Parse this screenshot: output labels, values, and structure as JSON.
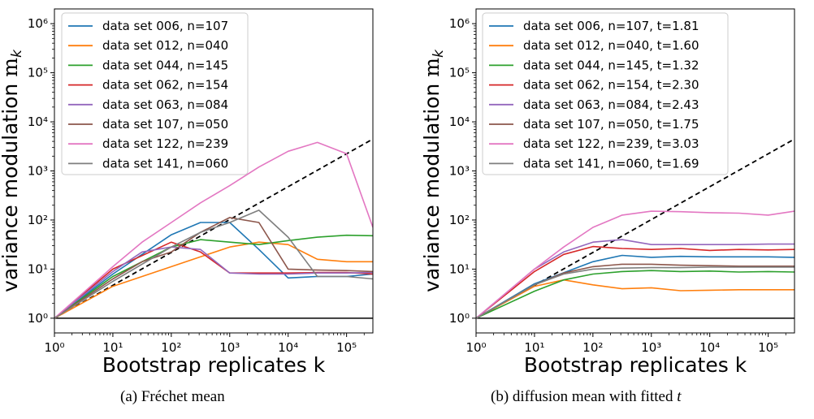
{
  "chart_data": [
    {
      "type": "line",
      "panel_label": "(a)",
      "caption": "Fréchet mean",
      "xlabel": "Bootstrap replicates k",
      "ylabel": "variance modulation ",
      "ylabel_symbol": "m",
      "ylabel_sub": "k",
      "xscale": "log",
      "yscale": "log",
      "xlim_log10": [
        0,
        5.45
      ],
      "ylim_log10": [
        -0.3,
        6.3
      ],
      "x_ticks_log10": [
        0,
        1,
        2,
        3,
        4,
        5
      ],
      "y_ticks_log10": [
        0,
        1,
        2,
        3,
        4,
        5,
        6
      ],
      "legend_position": "top-left",
      "series": [
        {
          "name": "data set 006, n=107",
          "color": "#1f77b4",
          "x_log10": [
            0,
            1,
            2,
            2.5,
            3,
            3.5,
            4,
            4.5,
            5,
            5.45
          ],
          "y_log10": [
            0,
            0.9,
            1.7,
            1.95,
            1.95,
            1.4,
            0.82,
            0.85,
            0.85,
            0.9
          ]
        },
        {
          "name": "data set 012, n=040",
          "color": "#ff7f0e",
          "x_log10": [
            0,
            1,
            2,
            2.5,
            3,
            3.5,
            4,
            4.5,
            5,
            5.45
          ],
          "y_log10": [
            0,
            0.65,
            1.05,
            1.25,
            1.45,
            1.55,
            1.5,
            1.2,
            1.15,
            1.15
          ]
        },
        {
          "name": "data set 044, n=145",
          "color": "#2ca02c",
          "x_log10": [
            0,
            1,
            2,
            2.5,
            3,
            3.5,
            4,
            4.5,
            5,
            5.45
          ],
          "y_log10": [
            0,
            0.85,
            1.45,
            1.6,
            1.55,
            1.5,
            1.58,
            1.65,
            1.69,
            1.68
          ]
        },
        {
          "name": "data set 062, n=154",
          "color": "#d62728",
          "x_log10": [
            0,
            1,
            2,
            2.5,
            3,
            3.5,
            4,
            4.5,
            5,
            5.45
          ],
          "y_log10": [
            0,
            1.0,
            1.55,
            1.35,
            0.92,
            0.92,
            0.92,
            0.93,
            0.93,
            0.9
          ]
        },
        {
          "name": "data set 063, n=084",
          "color": "#9467bd",
          "x_log10": [
            0,
            1,
            1.5,
            2,
            2.5,
            3,
            3.5,
            4,
            4.5,
            5,
            5.45
          ],
          "y_log10": [
            0,
            0.95,
            1.35,
            1.45,
            1.4,
            0.92,
            0.9,
            0.9,
            0.92,
            0.92,
            0.93
          ]
        },
        {
          "name": "data set 107, n=050",
          "color": "#8c564b",
          "x_log10": [
            0,
            1,
            1.5,
            2,
            2.5,
            3,
            3.5,
            4,
            4.5,
            5,
            5.45
          ],
          "y_log10": [
            0,
            0.8,
            1.15,
            1.35,
            1.75,
            2.05,
            1.95,
            1.0,
            0.98,
            0.97,
            0.95
          ]
        },
        {
          "name": "data set 122, n=239",
          "color": "#e377c2",
          "x_log10": [
            0,
            1,
            1.5,
            2,
            2.5,
            3,
            3.5,
            4,
            4.5,
            5,
            5.45
          ],
          "y_log10": [
            0,
            1.05,
            1.55,
            1.95,
            2.35,
            2.7,
            3.08,
            3.4,
            3.58,
            3.35,
            1.85
          ]
        },
        {
          "name": "data set 141, n=060",
          "color": "#7f7f7f",
          "x_log10": [
            0,
            1,
            2,
            2.5,
            3,
            3.5,
            4,
            4.5,
            5,
            5.45
          ],
          "y_log10": [
            0,
            0.75,
            1.45,
            1.75,
            1.95,
            2.2,
            1.65,
            0.85,
            0.85,
            0.8
          ]
        }
      ],
      "reference_lines": [
        {
          "name": "identity",
          "style": "dashed",
          "color": "#000000",
          "x_log10": [
            0,
            5.45
          ],
          "y_log10": [
            0,
            3.65
          ]
        },
        {
          "name": "unity",
          "style": "solid",
          "color": "#000000",
          "x_log10": [
            0,
            5.45
          ],
          "y_log10": [
            0,
            0
          ]
        }
      ]
    },
    {
      "type": "line",
      "panel_label": "(b)",
      "caption": "diffusion mean with fitted ",
      "caption_var": "t",
      "xlabel": "Bootstrap replicates k",
      "ylabel": "variance modulation ",
      "ylabel_symbol": "m",
      "ylabel_sub": "k",
      "xscale": "log",
      "yscale": "log",
      "xlim_log10": [
        0,
        5.45
      ],
      "ylim_log10": [
        -0.3,
        6.3
      ],
      "x_ticks_log10": [
        0,
        1,
        2,
        3,
        4,
        5
      ],
      "y_ticks_log10": [
        0,
        1,
        2,
        3,
        4,
        5,
        6
      ],
      "legend_position": "top-left",
      "series": [
        {
          "name": "data set 006, n=107, t=1.81",
          "color": "#1f77b4",
          "x_log10": [
            0,
            1,
            2,
            2.5,
            3,
            3.5,
            4,
            4.5,
            5,
            5.45
          ],
          "y_log10": [
            0,
            0.7,
            1.15,
            1.28,
            1.24,
            1.26,
            1.25,
            1.25,
            1.25,
            1.24
          ]
        },
        {
          "name": "data set 012, n=040, t=1.60",
          "color": "#ff7f0e",
          "x_log10": [
            0,
            1,
            1.5,
            2,
            2.5,
            3,
            3.5,
            4,
            4.5,
            5,
            5.45
          ],
          "y_log10": [
            0,
            0.65,
            0.78,
            0.68,
            0.6,
            0.62,
            0.56,
            0.57,
            0.58,
            0.58,
            0.58
          ]
        },
        {
          "name": "data set 044, n=145, t=1.32",
          "color": "#2ca02c",
          "x_log10": [
            0,
            1,
            1.5,
            2,
            2.5,
            3,
            3.5,
            4,
            4.5,
            5,
            5.45
          ],
          "y_log10": [
            0,
            0.55,
            0.78,
            0.9,
            0.95,
            0.97,
            0.95,
            0.96,
            0.94,
            0.95,
            0.94
          ]
        },
        {
          "name": "data set 062, n=154, t=2.30",
          "color": "#d62728",
          "x_log10": [
            0,
            1,
            1.5,
            2,
            2.5,
            3,
            3.5,
            4,
            4.5,
            5,
            5.45
          ],
          "y_log10": [
            0,
            0.95,
            1.3,
            1.46,
            1.42,
            1.4,
            1.42,
            1.38,
            1.4,
            1.39,
            1.4
          ]
        },
        {
          "name": "data set 063, n=084, t=2.43",
          "color": "#9467bd",
          "x_log10": [
            0,
            1,
            1.5,
            2,
            2.5,
            3,
            3.5,
            4,
            4.5,
            5,
            5.45
          ],
          "y_log10": [
            0,
            1.0,
            1.35,
            1.55,
            1.6,
            1.5,
            1.5,
            1.5,
            1.5,
            1.51,
            1.51
          ]
        },
        {
          "name": "data set 107, n=050, t=1.75",
          "color": "#8c564b",
          "x_log10": [
            0,
            1,
            1.5,
            2,
            2.5,
            3,
            3.5,
            4,
            4.5,
            5,
            5.45
          ],
          "y_log10": [
            0,
            0.68,
            0.92,
            1.05,
            1.1,
            1.1,
            1.08,
            1.07,
            1.06,
            1.06,
            1.06
          ]
        },
        {
          "name": "data set 122, n=239, t=3.03",
          "color": "#e377c2",
          "x_log10": [
            0,
            1,
            1.5,
            2,
            2.5,
            3,
            3.5,
            4,
            4.5,
            5,
            5.45
          ],
          "y_log10": [
            0,
            1.0,
            1.45,
            1.85,
            2.1,
            2.18,
            2.17,
            2.15,
            2.14,
            2.1,
            2.18
          ]
        },
        {
          "name": "data set 141, n=060, t=1.69",
          "color": "#7f7f7f",
          "x_log10": [
            0,
            1,
            1.5,
            2,
            2.5,
            3,
            3.5,
            4,
            4.5,
            5,
            5.45
          ],
          "y_log10": [
            0,
            0.68,
            0.9,
            1.0,
            1.02,
            1.03,
            1.03,
            1.04,
            1.04,
            1.04,
            1.04
          ]
        }
      ],
      "reference_lines": [
        {
          "name": "identity",
          "style": "dashed",
          "color": "#000000",
          "x_log10": [
            0,
            5.45
          ],
          "y_log10": [
            0,
            3.65
          ]
        },
        {
          "name": "unity",
          "style": "solid",
          "color": "#000000",
          "x_log10": [
            0,
            5.45
          ],
          "y_log10": [
            0,
            0
          ]
        }
      ]
    }
  ],
  "captions": {
    "a_label": "(a)",
    "a_text": "Fréchet mean",
    "b_label": "(b)",
    "b_text": "diffusion mean with fitted ",
    "b_var": "t"
  }
}
